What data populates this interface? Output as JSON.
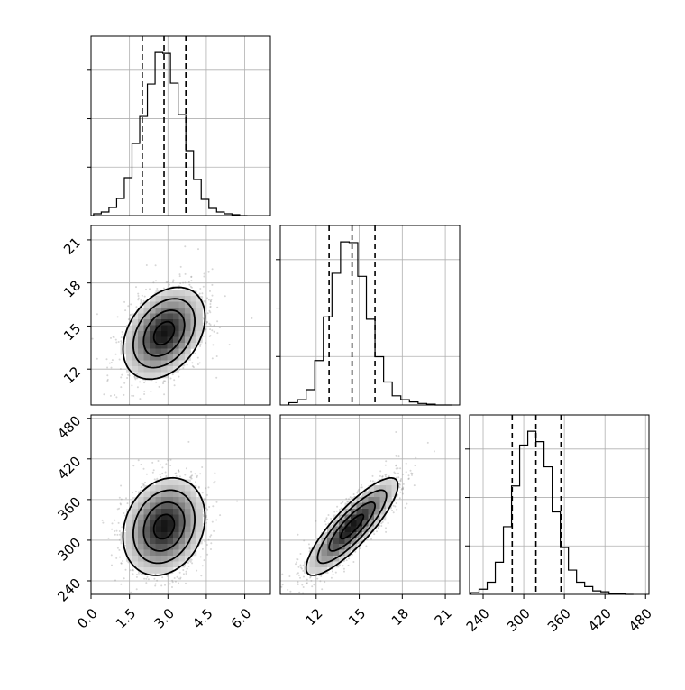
{
  "chart_data": {
    "type": "corner",
    "grid": true,
    "params": [
      {
        "range": [
          0,
          7
        ],
        "ticks": [
          "0.0",
          "1.5",
          "3.0",
          "4.5",
          "6.0"
        ],
        "tick_values": [
          0,
          1.5,
          3,
          4.5,
          6
        ],
        "mean": 2.85,
        "std": 0.8,
        "quantiles": [
          2.0,
          2.85,
          3.7
        ]
      },
      {
        "range": [
          9.5,
          22
        ],
        "ticks": [
          "12",
          "15",
          "18",
          "21"
        ],
        "tick_values": [
          12,
          15,
          18,
          21
        ],
        "mean": 14.5,
        "std": 1.6,
        "quantiles": [
          12.9,
          14.5,
          16.1
        ]
      },
      {
        "range": [
          220,
          485
        ],
        "ticks": [
          "240",
          "300",
          "360",
          "420",
          "480"
        ],
        "tick_values": [
          240,
          300,
          360,
          420,
          480
        ],
        "mean": 320,
        "std": 36,
        "quantiles": [
          283,
          318,
          355
        ]
      }
    ],
    "histograms": [
      {
        "param": 0,
        "bin_edges": [
          0.1,
          0.4,
          0.7,
          1.0,
          1.3,
          1.6,
          1.9,
          2.2,
          2.5,
          2.8,
          3.1,
          3.4,
          3.7,
          4.0,
          4.3,
          4.6,
          4.9,
          5.2,
          5.5,
          5.8,
          6.1
        ],
        "counts": [
          2,
          4,
          9,
          19,
          42,
          80,
          110,
          146,
          181,
          180,
          147,
          112,
          72,
          40,
          18,
          8,
          4,
          2,
          1,
          0
        ]
      },
      {
        "param": 1,
        "bin_edges": [
          10.1,
          10.7,
          11.3,
          11.9,
          12.5,
          13.1,
          13.7,
          14.3,
          14.9,
          15.5,
          16.1,
          16.7,
          17.3,
          17.9,
          18.5,
          19.1,
          19.7,
          20.3,
          20.9,
          21.5
        ],
        "counts": [
          3,
          7,
          20,
          58,
          115,
          172,
          213,
          212,
          168,
          112,
          63,
          30,
          12,
          7,
          4,
          2,
          1,
          0,
          0
        ]
      },
      {
        "param": 2,
        "bin_edges": [
          222,
          234,
          246,
          258,
          270,
          282,
          294,
          306,
          318,
          330,
          342,
          354,
          366,
          378,
          390,
          402,
          414,
          426,
          438,
          450,
          462
        ],
        "counts": [
          2,
          6,
          14,
          37,
          78,
          125,
          172,
          188,
          176,
          147,
          95,
          54,
          28,
          14,
          9,
          4,
          3,
          1,
          1,
          0
        ]
      }
    ],
    "pairs": [
      {
        "x_param": 0,
        "y_param": 1,
        "correlation": 0.35
      },
      {
        "x_param": 0,
        "y_param": 2,
        "correlation": 0.2
      },
      {
        "x_param": 1,
        "y_param": 2,
        "correlation": 0.85
      }
    ],
    "contour_levels_sigma": [
      0.5,
      1.0,
      1.5,
      2.0
    ],
    "points_color": "#8c8c8c",
    "line_color": "#000000"
  }
}
